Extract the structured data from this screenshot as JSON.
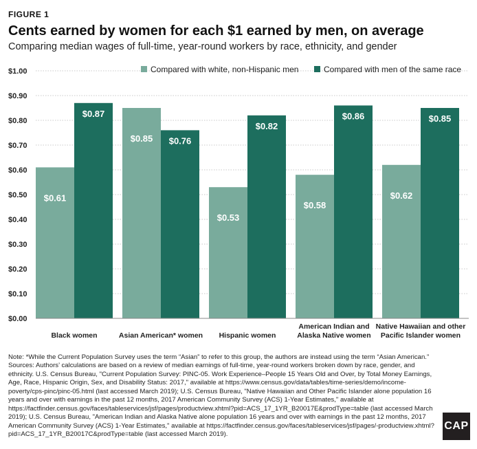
{
  "figure_label": "FIGURE 1",
  "notes": {
    "note": "Note: *While the Current Population Survey uses the term “Asian” to refer to this group, the authors are instead using the term “Asian American.”",
    "sources": "Sources: Authors’ calculations are based on a review of median earnings of full-time, year-round workers broken down by race, gender, and ethnicity. U.S. Census Bureau, \"Current Population Survey: PINC-05. Work Experience–People 15 Years Old and Over, by Total Money Earnings, Age, Race, Hispanic Origin, Sex, and Disability Status: 2017,\" available at https://www.census.gov/data/tables/time-series/demo/income-poverty/cps-pinc/pinc-05.html (last accessed March 2019); U.S. Census Bureau, \"Native Hawaiian and Other Pacific Islander alone population 16 years and over with earnings in the past 12 months, 2017 American Community Survey (ACS) 1-Year Estimates,\" available at https://factfinder.census.gov/faces/tableservices/jsf/pages/productview.xhtml?pid=ACS_17_1YR_B20017E&prodType=table (last accessed March 2019); U.S. Census Bureau, \"American Indian and Alaska Native alone population 16 years and over with earnings in the past 12 months, 2017 American Community Survey (ACS) 1-Year Estimates,\" available at https://factfinder.census.gov/faces/tableservices/jsf/pages/-productview.xhtml?pid=ACS_17_1YR_B20017C&prodType=table (last accessed March 2019)."
  },
  "logo_text": "CAP",
  "colors": {
    "series_light": "#79ab9c",
    "series_dark": "#1d6e5e",
    "gridline": "#c8c8c8",
    "axis": "#888888"
  },
  "chart_data": {
    "type": "bar",
    "title": "Cents earned by women for each $1 earned by men, on average",
    "subtitle": "Comparing median wages of full-time, year-round workers by race, ethnicity, and gender",
    "categories": [
      "Black women",
      "Asian American* women",
      "Hispanic women",
      "American Indian and\nAlaska Native women",
      "Native Hawaiian and other\nPacific Islander women"
    ],
    "series": [
      {
        "name": "Compared with white, non-Hispanic men",
        "values": [
          0.61,
          0.85,
          0.53,
          0.58,
          0.62
        ]
      },
      {
        "name": "Compared with men of the same race",
        "values": [
          0.87,
          0.76,
          0.82,
          0.86,
          0.85
        ]
      }
    ],
    "ylim": [
      0,
      1
    ],
    "yticks": [
      0.0,
      0.1,
      0.2,
      0.3,
      0.4,
      0.5,
      0.6,
      0.7,
      0.8,
      0.9,
      1.0
    ],
    "ytick_labels": [
      "$0.00",
      "$0.10",
      "$0.20",
      "$0.30",
      "$0.40",
      "$0.50",
      "$0.60",
      "$0.70",
      "$0.80",
      "$0.90",
      "$1.00"
    ],
    "data_labels": [
      [
        "$0.61",
        "$0.85",
        "$0.53",
        "$0.58",
        "$0.62"
      ],
      [
        "$0.87",
        "$0.76",
        "$0.82",
        "$0.86",
        "$0.85"
      ]
    ],
    "grid": true,
    "legend_position": "top"
  }
}
